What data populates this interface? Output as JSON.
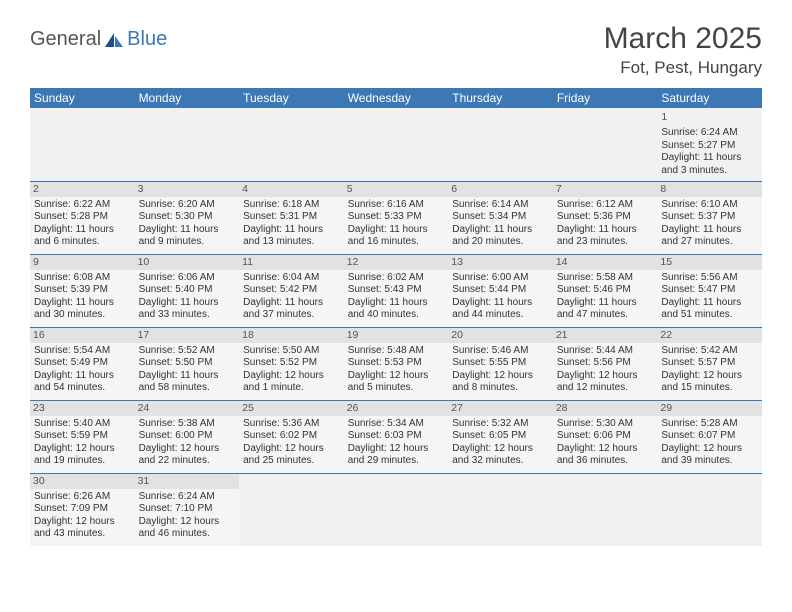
{
  "brand": {
    "part1": "General",
    "part2": "Blue"
  },
  "title": "March 2025",
  "location": "Fot, Pest, Hungary",
  "colors": {
    "header_bg": "#3b78b5",
    "header_text": "#ffffff",
    "cell_bg": "#f5f5f5",
    "daynum_bg": "#e2e2e2",
    "border": "#3b78b5",
    "text": "#333333",
    "brand_blue": "#3b78b5",
    "brand_gray": "#555555"
  },
  "weekdays": [
    "Sunday",
    "Monday",
    "Tuesday",
    "Wednesday",
    "Thursday",
    "Friday",
    "Saturday"
  ],
  "weeks": [
    [
      null,
      null,
      null,
      null,
      null,
      null,
      {
        "n": "1",
        "sr": "Sunrise: 6:24 AM",
        "ss": "Sunset: 5:27 PM",
        "dl": "Daylight: 11 hours and 3 minutes."
      }
    ],
    [
      {
        "n": "2",
        "sr": "Sunrise: 6:22 AM",
        "ss": "Sunset: 5:28 PM",
        "dl": "Daylight: 11 hours and 6 minutes."
      },
      {
        "n": "3",
        "sr": "Sunrise: 6:20 AM",
        "ss": "Sunset: 5:30 PM",
        "dl": "Daylight: 11 hours and 9 minutes."
      },
      {
        "n": "4",
        "sr": "Sunrise: 6:18 AM",
        "ss": "Sunset: 5:31 PM",
        "dl": "Daylight: 11 hours and 13 minutes."
      },
      {
        "n": "5",
        "sr": "Sunrise: 6:16 AM",
        "ss": "Sunset: 5:33 PM",
        "dl": "Daylight: 11 hours and 16 minutes."
      },
      {
        "n": "6",
        "sr": "Sunrise: 6:14 AM",
        "ss": "Sunset: 5:34 PM",
        "dl": "Daylight: 11 hours and 20 minutes."
      },
      {
        "n": "7",
        "sr": "Sunrise: 6:12 AM",
        "ss": "Sunset: 5:36 PM",
        "dl": "Daylight: 11 hours and 23 minutes."
      },
      {
        "n": "8",
        "sr": "Sunrise: 6:10 AM",
        "ss": "Sunset: 5:37 PM",
        "dl": "Daylight: 11 hours and 27 minutes."
      }
    ],
    [
      {
        "n": "9",
        "sr": "Sunrise: 6:08 AM",
        "ss": "Sunset: 5:39 PM",
        "dl": "Daylight: 11 hours and 30 minutes."
      },
      {
        "n": "10",
        "sr": "Sunrise: 6:06 AM",
        "ss": "Sunset: 5:40 PM",
        "dl": "Daylight: 11 hours and 33 minutes."
      },
      {
        "n": "11",
        "sr": "Sunrise: 6:04 AM",
        "ss": "Sunset: 5:42 PM",
        "dl": "Daylight: 11 hours and 37 minutes."
      },
      {
        "n": "12",
        "sr": "Sunrise: 6:02 AM",
        "ss": "Sunset: 5:43 PM",
        "dl": "Daylight: 11 hours and 40 minutes."
      },
      {
        "n": "13",
        "sr": "Sunrise: 6:00 AM",
        "ss": "Sunset: 5:44 PM",
        "dl": "Daylight: 11 hours and 44 minutes."
      },
      {
        "n": "14",
        "sr": "Sunrise: 5:58 AM",
        "ss": "Sunset: 5:46 PM",
        "dl": "Daylight: 11 hours and 47 minutes."
      },
      {
        "n": "15",
        "sr": "Sunrise: 5:56 AM",
        "ss": "Sunset: 5:47 PM",
        "dl": "Daylight: 11 hours and 51 minutes."
      }
    ],
    [
      {
        "n": "16",
        "sr": "Sunrise: 5:54 AM",
        "ss": "Sunset: 5:49 PM",
        "dl": "Daylight: 11 hours and 54 minutes."
      },
      {
        "n": "17",
        "sr": "Sunrise: 5:52 AM",
        "ss": "Sunset: 5:50 PM",
        "dl": "Daylight: 11 hours and 58 minutes."
      },
      {
        "n": "18",
        "sr": "Sunrise: 5:50 AM",
        "ss": "Sunset: 5:52 PM",
        "dl": "Daylight: 12 hours and 1 minute."
      },
      {
        "n": "19",
        "sr": "Sunrise: 5:48 AM",
        "ss": "Sunset: 5:53 PM",
        "dl": "Daylight: 12 hours and 5 minutes."
      },
      {
        "n": "20",
        "sr": "Sunrise: 5:46 AM",
        "ss": "Sunset: 5:55 PM",
        "dl": "Daylight: 12 hours and 8 minutes."
      },
      {
        "n": "21",
        "sr": "Sunrise: 5:44 AM",
        "ss": "Sunset: 5:56 PM",
        "dl": "Daylight: 12 hours and 12 minutes."
      },
      {
        "n": "22",
        "sr": "Sunrise: 5:42 AM",
        "ss": "Sunset: 5:57 PM",
        "dl": "Daylight: 12 hours and 15 minutes."
      }
    ],
    [
      {
        "n": "23",
        "sr": "Sunrise: 5:40 AM",
        "ss": "Sunset: 5:59 PM",
        "dl": "Daylight: 12 hours and 19 minutes."
      },
      {
        "n": "24",
        "sr": "Sunrise: 5:38 AM",
        "ss": "Sunset: 6:00 PM",
        "dl": "Daylight: 12 hours and 22 minutes."
      },
      {
        "n": "25",
        "sr": "Sunrise: 5:36 AM",
        "ss": "Sunset: 6:02 PM",
        "dl": "Daylight: 12 hours and 25 minutes."
      },
      {
        "n": "26",
        "sr": "Sunrise: 5:34 AM",
        "ss": "Sunset: 6:03 PM",
        "dl": "Daylight: 12 hours and 29 minutes."
      },
      {
        "n": "27",
        "sr": "Sunrise: 5:32 AM",
        "ss": "Sunset: 6:05 PM",
        "dl": "Daylight: 12 hours and 32 minutes."
      },
      {
        "n": "28",
        "sr": "Sunrise: 5:30 AM",
        "ss": "Sunset: 6:06 PM",
        "dl": "Daylight: 12 hours and 36 minutes."
      },
      {
        "n": "29",
        "sr": "Sunrise: 5:28 AM",
        "ss": "Sunset: 6:07 PM",
        "dl": "Daylight: 12 hours and 39 minutes."
      }
    ],
    [
      {
        "n": "30",
        "sr": "Sunrise: 6:26 AM",
        "ss": "Sunset: 7:09 PM",
        "dl": "Daylight: 12 hours and 43 minutes."
      },
      {
        "n": "31",
        "sr": "Sunrise: 6:24 AM",
        "ss": "Sunset: 7:10 PM",
        "dl": "Daylight: 12 hours and 46 minutes."
      },
      null,
      null,
      null,
      null,
      null
    ]
  ]
}
